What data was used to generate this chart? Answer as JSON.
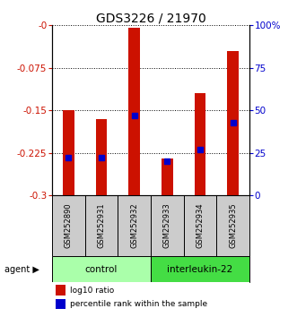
{
  "title": "GDS3226 / 21970",
  "samples": [
    "GSM252890",
    "GSM252931",
    "GSM252932",
    "GSM252933",
    "GSM252934",
    "GSM252935"
  ],
  "log10_ratio": [
    -0.15,
    -0.165,
    -0.005,
    -0.235,
    -0.12,
    -0.045
  ],
  "percentile_rank": [
    22,
    22,
    47,
    20,
    27,
    43
  ],
  "bar_bottom": -0.3,
  "ylim_left": [
    -0.3,
    0.0
  ],
  "ylim_right": [
    0,
    100
  ],
  "yticks_left": [
    -0.3,
    -0.225,
    -0.15,
    -0.075,
    0.0
  ],
  "ytick_labels_left": [
    "-0.3",
    "-0.225",
    "-0.15",
    "-0.075",
    "-0"
  ],
  "yticks_right": [
    0,
    25,
    50,
    75,
    100
  ],
  "ytick_labels_right": [
    "0",
    "25",
    "50",
    "75",
    "100%"
  ],
  "groups": [
    {
      "label": "control",
      "indices": [
        0,
        1,
        2
      ],
      "color": "#AAFFAA"
    },
    {
      "label": "interleukin-22",
      "indices": [
        3,
        4,
        5
      ],
      "color": "#44DD44"
    }
  ],
  "bar_color": "#CC1100",
  "dot_color": "#0000CC",
  "bg_color": "#FFFFFF",
  "bar_width": 0.35,
  "sample_box_color": "#CCCCCC"
}
